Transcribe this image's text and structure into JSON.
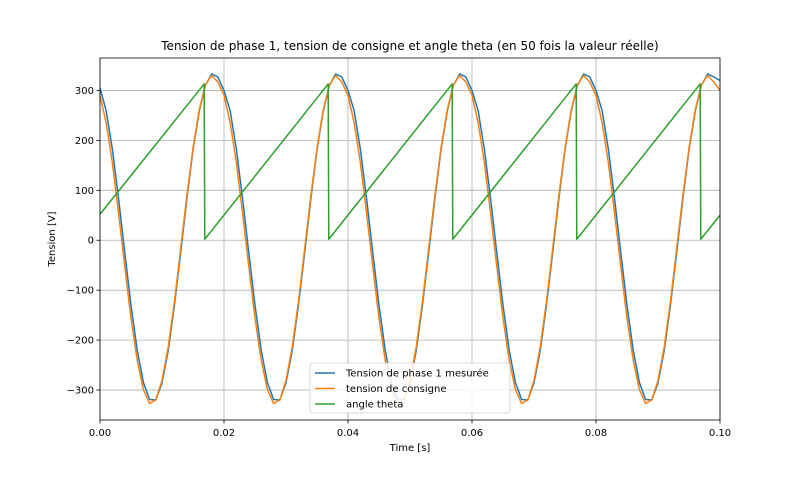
{
  "chart_data": {
    "type": "line",
    "title": "Tension de phase 1, tension de consigne et angle theta (en 50 fois la valeur réelle)",
    "xlabel": "Time [s]",
    "ylabel": "Tension [V]",
    "xlim": [
      0,
      0.1
    ],
    "ylim": [
      -360,
      365
    ],
    "grid": true,
    "legend_position": "lower center",
    "x_ticks": [
      0,
      0.02,
      0.04,
      0.06,
      0.08,
      0.1
    ],
    "x_tick_labels": [
      "0.00",
      "0.02",
      "0.04",
      "0.06",
      "0.08",
      "0.10"
    ],
    "y_ticks": [
      -300,
      -200,
      -100,
      0,
      100,
      200,
      300
    ],
    "y_tick_labels": [
      "−300",
      "−200",
      "−100",
      "0",
      "100",
      "200",
      "300"
    ],
    "series": [
      {
        "name": "Tension de phase 1 mesurée",
        "color": "#1f77b4",
        "x": [
          0,
          0.001,
          0.002,
          0.003,
          0.004,
          0.005,
          0.006,
          0.007,
          0.008,
          0.009,
          0.01,
          0.011,
          0.012,
          0.013,
          0.014,
          0.015,
          0.016,
          0.017,
          0.018,
          0.019,
          0.02,
          0.021,
          0.022,
          0.023,
          0.024,
          0.025,
          0.026,
          0.027,
          0.028,
          0.029,
          0.03,
          0.031,
          0.032,
          0.033,
          0.034,
          0.035,
          0.036,
          0.037,
          0.038,
          0.039,
          0.04,
          0.041,
          0.042,
          0.043,
          0.044,
          0.045,
          0.046,
          0.047,
          0.048,
          0.049,
          0.05,
          0.051,
          0.052,
          0.053,
          0.054,
          0.055,
          0.056,
          0.057,
          0.058,
          0.059,
          0.06,
          0.061,
          0.062,
          0.063,
          0.064,
          0.065,
          0.066,
          0.067,
          0.068,
          0.069,
          0.07,
          0.071,
          0.072,
          0.073,
          0.074,
          0.075,
          0.076,
          0.077,
          0.078,
          0.079,
          0.08,
          0.081,
          0.082,
          0.083,
          0.084,
          0.085,
          0.086,
          0.087,
          0.088,
          0.089,
          0.09,
          0.091,
          0.092,
          0.093,
          0.094,
          0.095,
          0.096,
          0.097,
          0.098,
          0.099,
          0.1
        ],
        "values": [
          305,
          259,
          182,
          83,
          -25,
          -130,
          -220,
          -285,
          -319,
          -320,
          -286,
          -221,
          -131,
          -26,
          82,
          181,
          258,
          310,
          333,
          327,
          300,
          259,
          182,
          83,
          -25,
          -130,
          -220,
          -285,
          -319,
          -320,
          -286,
          -221,
          -131,
          -26,
          82,
          181,
          258,
          310,
          333,
          327,
          300,
          259,
          182,
          83,
          -25,
          -130,
          -220,
          -285,
          -319,
          -320,
          -286,
          -221,
          -131,
          -26,
          82,
          181,
          258,
          310,
          333,
          327,
          300,
          259,
          182,
          83,
          -25,
          -130,
          -220,
          -285,
          -319,
          -320,
          -286,
          -221,
          -131,
          -26,
          82,
          181,
          258,
          310,
          333,
          327,
          300,
          259,
          182,
          83,
          -25,
          -130,
          -220,
          -285,
          -319,
          -320,
          -286,
          -221,
          -131,
          -26,
          82,
          181,
          258,
          310,
          333,
          327,
          320
        ]
      },
      {
        "name": "tension de consigne",
        "color": "#ff7f0e",
        "x": [
          0,
          0.001,
          0.002,
          0.003,
          0.004,
          0.005,
          0.006,
          0.007,
          0.008,
          0.009,
          0.01,
          0.011,
          0.012,
          0.013,
          0.014,
          0.015,
          0.016,
          0.017,
          0.018,
          0.019,
          0.02,
          0.021,
          0.022,
          0.023,
          0.024,
          0.025,
          0.026,
          0.027,
          0.028,
          0.029,
          0.03,
          0.031,
          0.032,
          0.033,
          0.034,
          0.035,
          0.036,
          0.037,
          0.038,
          0.039,
          0.04,
          0.041,
          0.042,
          0.043,
          0.044,
          0.045,
          0.046,
          0.047,
          0.048,
          0.049,
          0.05,
          0.051,
          0.052,
          0.053,
          0.054,
          0.055,
          0.056,
          0.057,
          0.058,
          0.059,
          0.06,
          0.061,
          0.062,
          0.063,
          0.064,
          0.065,
          0.066,
          0.067,
          0.068,
          0.069,
          0.07,
          0.071,
          0.072,
          0.073,
          0.074,
          0.075,
          0.076,
          0.077,
          0.078,
          0.079,
          0.08,
          0.081,
          0.082,
          0.083,
          0.084,
          0.085,
          0.086,
          0.087,
          0.088,
          0.089,
          0.09,
          0.091,
          0.092,
          0.093,
          0.094,
          0.095,
          0.096,
          0.097,
          0.098,
          0.099,
          0.1
        ],
        "values": [
          290,
          235,
          155,
          54,
          -53,
          -156,
          -240,
          -299,
          -327,
          -320,
          -281,
          -214,
          -124,
          -18,
          88,
          184,
          261,
          311,
          330,
          317,
          290,
          235,
          155,
          54,
          -53,
          -156,
          -240,
          -299,
          -327,
          -320,
          -281,
          -214,
          -124,
          -18,
          88,
          184,
          261,
          311,
          330,
          317,
          290,
          235,
          155,
          54,
          -53,
          -156,
          -240,
          -299,
          -327,
          -320,
          -281,
          -214,
          -124,
          -18,
          88,
          184,
          261,
          311,
          330,
          317,
          290,
          235,
          155,
          54,
          -53,
          -156,
          -240,
          -299,
          -327,
          -320,
          -281,
          -214,
          -124,
          -18,
          88,
          184,
          261,
          311,
          330,
          317,
          290,
          235,
          155,
          54,
          -53,
          -156,
          -240,
          -299,
          -327,
          -320,
          -281,
          -214,
          -124,
          -18,
          88,
          184,
          261,
          311,
          330,
          317,
          300
        ]
      },
      {
        "name": "angle theta",
        "color": "#2ca02c",
        "x": [
          0,
          0.0168,
          0.0169,
          0.0368,
          0.0369,
          0.0568,
          0.0569,
          0.0768,
          0.0769,
          0.0968,
          0.0969,
          0.1
        ],
        "values": [
          52,
          313,
          2,
          313,
          2,
          313,
          2,
          313,
          2,
          313,
          2,
          50
        ]
      }
    ]
  }
}
